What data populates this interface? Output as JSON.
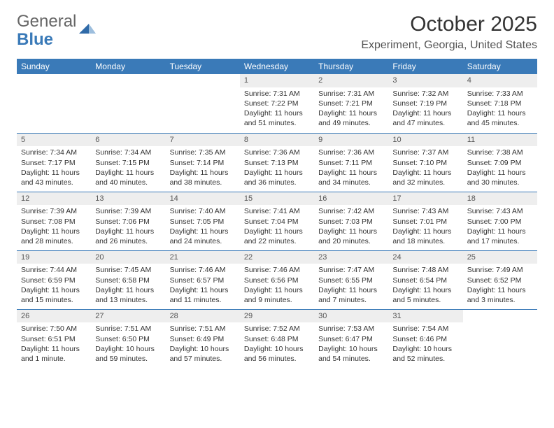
{
  "logo": {
    "general": "General",
    "blue": "Blue"
  },
  "title": "October 2025",
  "location": "Experiment, Georgia, United States",
  "colors": {
    "header_bg": "#3a7ab8",
    "header_text": "#ffffff",
    "daynum_bg": "#eeeeee",
    "body_text": "#333333",
    "rule": "#3a7ab8"
  },
  "weekdays": [
    "Sunday",
    "Monday",
    "Tuesday",
    "Wednesday",
    "Thursday",
    "Friday",
    "Saturday"
  ],
  "grid": [
    [
      {
        "blank": true
      },
      {
        "blank": true
      },
      {
        "blank": true
      },
      {
        "n": "1",
        "sr": "7:31 AM",
        "ss": "7:22 PM",
        "dl": "11 hours and 51 minutes."
      },
      {
        "n": "2",
        "sr": "7:31 AM",
        "ss": "7:21 PM",
        "dl": "11 hours and 49 minutes."
      },
      {
        "n": "3",
        "sr": "7:32 AM",
        "ss": "7:19 PM",
        "dl": "11 hours and 47 minutes."
      },
      {
        "n": "4",
        "sr": "7:33 AM",
        "ss": "7:18 PM",
        "dl": "11 hours and 45 minutes."
      }
    ],
    [
      {
        "n": "5",
        "sr": "7:34 AM",
        "ss": "7:17 PM",
        "dl": "11 hours and 43 minutes."
      },
      {
        "n": "6",
        "sr": "7:34 AM",
        "ss": "7:15 PM",
        "dl": "11 hours and 40 minutes."
      },
      {
        "n": "7",
        "sr": "7:35 AM",
        "ss": "7:14 PM",
        "dl": "11 hours and 38 minutes."
      },
      {
        "n": "8",
        "sr": "7:36 AM",
        "ss": "7:13 PM",
        "dl": "11 hours and 36 minutes."
      },
      {
        "n": "9",
        "sr": "7:36 AM",
        "ss": "7:11 PM",
        "dl": "11 hours and 34 minutes."
      },
      {
        "n": "10",
        "sr": "7:37 AM",
        "ss": "7:10 PM",
        "dl": "11 hours and 32 minutes."
      },
      {
        "n": "11",
        "sr": "7:38 AM",
        "ss": "7:09 PM",
        "dl": "11 hours and 30 minutes."
      }
    ],
    [
      {
        "n": "12",
        "sr": "7:39 AM",
        "ss": "7:08 PM",
        "dl": "11 hours and 28 minutes."
      },
      {
        "n": "13",
        "sr": "7:39 AM",
        "ss": "7:06 PM",
        "dl": "11 hours and 26 minutes."
      },
      {
        "n": "14",
        "sr": "7:40 AM",
        "ss": "7:05 PM",
        "dl": "11 hours and 24 minutes."
      },
      {
        "n": "15",
        "sr": "7:41 AM",
        "ss": "7:04 PM",
        "dl": "11 hours and 22 minutes."
      },
      {
        "n": "16",
        "sr": "7:42 AM",
        "ss": "7:03 PM",
        "dl": "11 hours and 20 minutes."
      },
      {
        "n": "17",
        "sr": "7:43 AM",
        "ss": "7:01 PM",
        "dl": "11 hours and 18 minutes."
      },
      {
        "n": "18",
        "sr": "7:43 AM",
        "ss": "7:00 PM",
        "dl": "11 hours and 17 minutes."
      }
    ],
    [
      {
        "n": "19",
        "sr": "7:44 AM",
        "ss": "6:59 PM",
        "dl": "11 hours and 15 minutes."
      },
      {
        "n": "20",
        "sr": "7:45 AM",
        "ss": "6:58 PM",
        "dl": "11 hours and 13 minutes."
      },
      {
        "n": "21",
        "sr": "7:46 AM",
        "ss": "6:57 PM",
        "dl": "11 hours and 11 minutes."
      },
      {
        "n": "22",
        "sr": "7:46 AM",
        "ss": "6:56 PM",
        "dl": "11 hours and 9 minutes."
      },
      {
        "n": "23",
        "sr": "7:47 AM",
        "ss": "6:55 PM",
        "dl": "11 hours and 7 minutes."
      },
      {
        "n": "24",
        "sr": "7:48 AM",
        "ss": "6:54 PM",
        "dl": "11 hours and 5 minutes."
      },
      {
        "n": "25",
        "sr": "7:49 AM",
        "ss": "6:52 PM",
        "dl": "11 hours and 3 minutes."
      }
    ],
    [
      {
        "n": "26",
        "sr": "7:50 AM",
        "ss": "6:51 PM",
        "dl": "11 hours and 1 minute."
      },
      {
        "n": "27",
        "sr": "7:51 AM",
        "ss": "6:50 PM",
        "dl": "10 hours and 59 minutes."
      },
      {
        "n": "28",
        "sr": "7:51 AM",
        "ss": "6:49 PM",
        "dl": "10 hours and 57 minutes."
      },
      {
        "n": "29",
        "sr": "7:52 AM",
        "ss": "6:48 PM",
        "dl": "10 hours and 56 minutes."
      },
      {
        "n": "30",
        "sr": "7:53 AM",
        "ss": "6:47 PM",
        "dl": "10 hours and 54 minutes."
      },
      {
        "n": "31",
        "sr": "7:54 AM",
        "ss": "6:46 PM",
        "dl": "10 hours and 52 minutes."
      },
      {
        "blank": true
      }
    ]
  ],
  "labels": {
    "sunrise": "Sunrise: ",
    "sunset": "Sunset: ",
    "daylight": "Daylight: "
  }
}
